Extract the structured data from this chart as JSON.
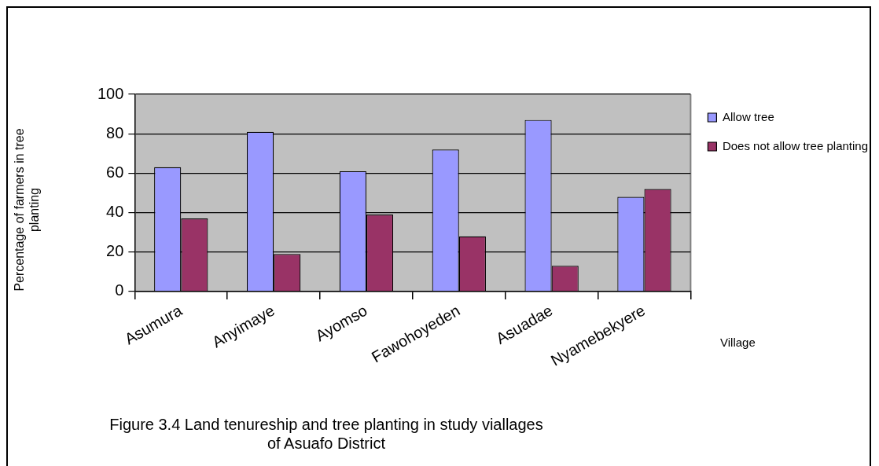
{
  "chart_data": {
    "type": "bar",
    "title": "Figure 3.4 Land tenureship and tree planting in study viallages of Asuafo District",
    "xlabel": "Village",
    "ylabel": "Percentage of farmers in tree planting",
    "categories": [
      "Asumura",
      "Anyimaye",
      "Ayomso",
      "Fawohoyeden",
      "Asuadae",
      "Nyamebekyere"
    ],
    "series": [
      {
        "name": "Allow tree",
        "color": "#9999ff",
        "values": [
          63,
          81,
          61,
          72,
          87,
          48
        ]
      },
      {
        "name": "Does not allow tree planting",
        "color": "#993366",
        "values": [
          37,
          19,
          39,
          28,
          13,
          52
        ]
      }
    ],
    "ylim": [
      0,
      100
    ],
    "yticks": [
      0,
      20,
      40,
      60,
      80,
      100
    ],
    "grid": "y",
    "legend": "right"
  }
}
